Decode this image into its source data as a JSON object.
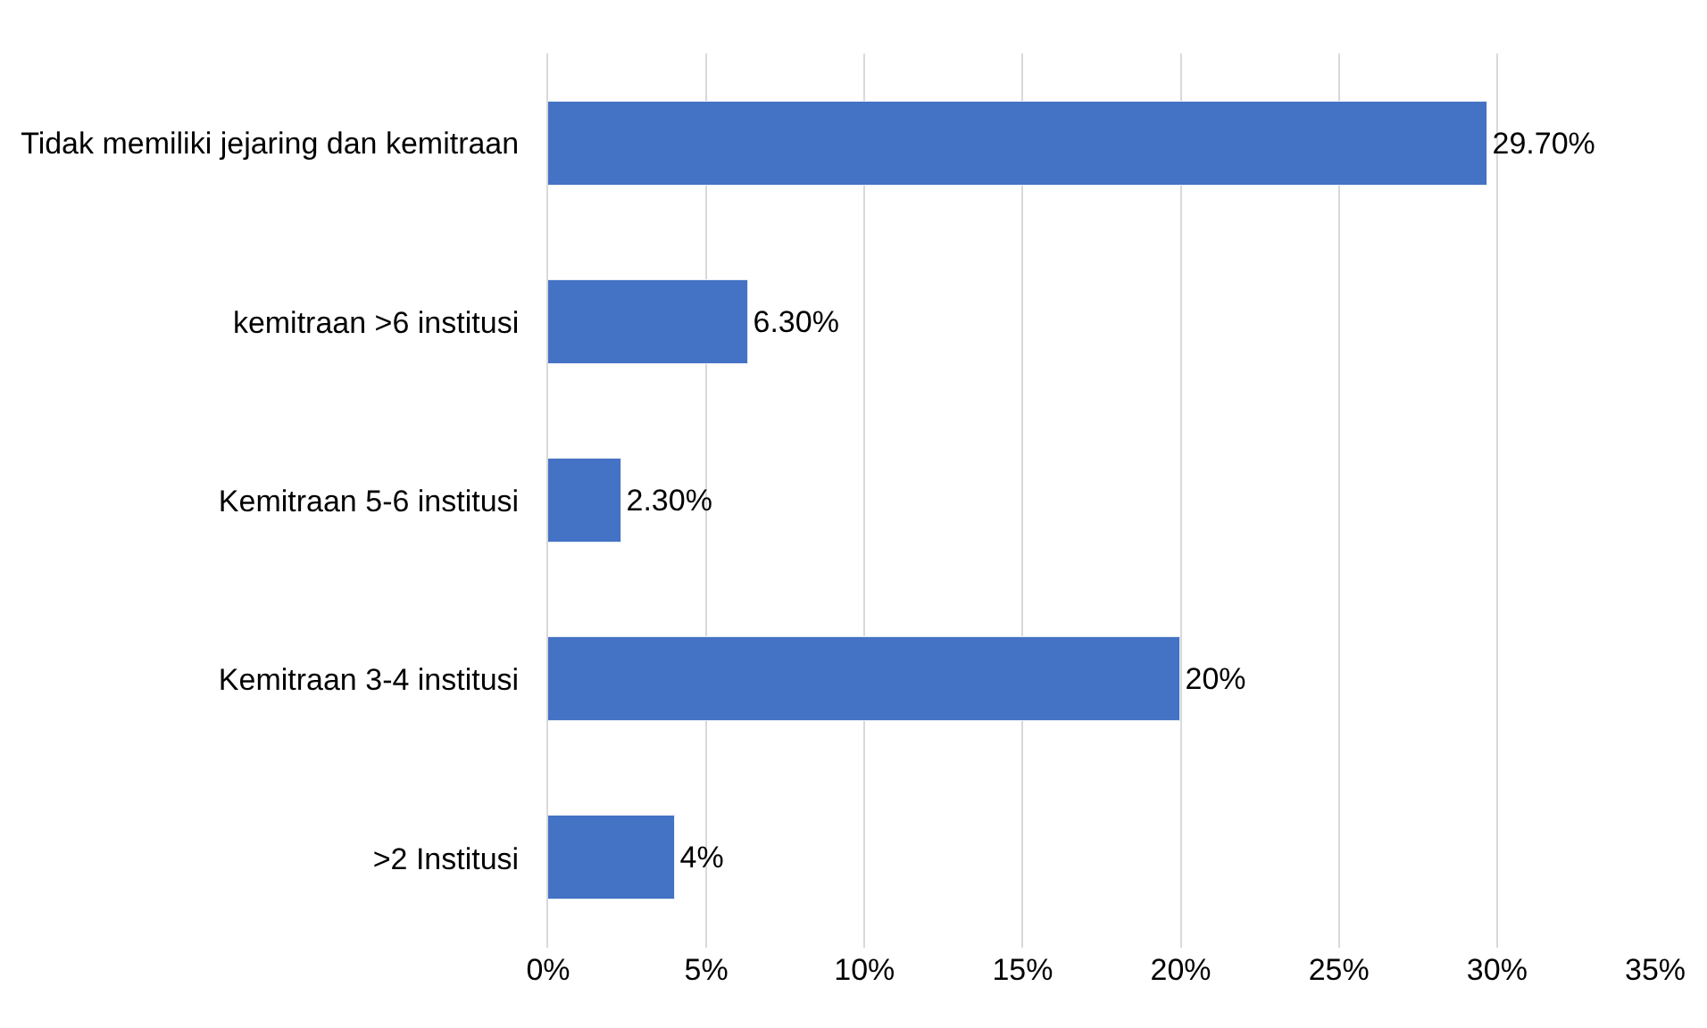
{
  "chart_data": {
    "type": "bar",
    "orientation": "horizontal",
    "categories": [
      "Tidak memiliki jejaring dan kemitraan",
      "kemitraan >6 institusi",
      "Kemitraan 5-6 institusi",
      "Kemitraan 3-4 institusi",
      ">2 Institusi"
    ],
    "values": [
      29.7,
      6.3,
      2.3,
      20,
      4
    ],
    "value_labels": [
      "29.70%",
      "6.30%",
      "2.30%",
      "20%",
      "4%"
    ],
    "color": "#4472c4",
    "xlim": [
      0,
      35
    ],
    "xticks": [
      {
        "value": 0,
        "label": "0%"
      },
      {
        "value": 5,
        "label": "5%"
      },
      {
        "value": 10,
        "label": "10%"
      },
      {
        "value": 15,
        "label": "15%"
      },
      {
        "value": 20,
        "label": "20%"
      },
      {
        "value": 25,
        "label": "25%"
      },
      {
        "value": 30,
        "label": "30%"
      },
      {
        "value": 35,
        "label": "35%"
      }
    ],
    "grid": "x"
  }
}
